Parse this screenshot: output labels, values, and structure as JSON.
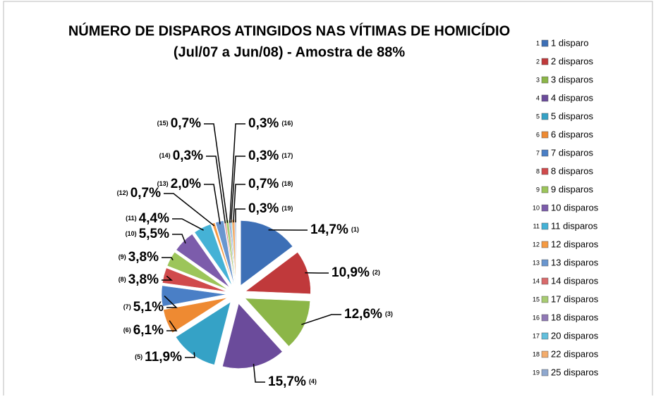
{
  "chart_data": {
    "type": "pie",
    "title": "NÚMERO DE DISPAROS ATINGIDOS NAS VÍTIMAS DE HOMICÍDIO",
    "subtitle": "(Jul/07 a Jun/08) -  Amostra de 88%",
    "categories": [
      "1 disparo",
      "2 disparos",
      "3 disparos",
      "4 disparos",
      "5 disparos",
      "6 disparos",
      "7 disparos",
      "8 disparos",
      "9 disparos",
      "10 disparos",
      "11 disparos",
      "12 disparos",
      "13 disparos",
      "14 disparos",
      "17 disparos",
      "18 disparos",
      "20 disparos",
      "22 disparos",
      "25 disparos"
    ],
    "legend_numbers": [
      "1",
      "2",
      "3",
      "4",
      "5",
      "6",
      "7",
      "8",
      "9",
      "10",
      "11",
      "12",
      "13",
      "14",
      "15",
      "16",
      "17",
      "18",
      "19"
    ],
    "slice_numbers": [
      "(1)",
      "(2)",
      "(3)",
      "(4)",
      "(5)",
      "(6)",
      "(7)",
      "(8)",
      "(9)",
      "(10)",
      "(11)",
      "(12)",
      "(13)",
      "(14)",
      "(15)",
      "(16)",
      "(17)",
      "(18)",
      "(19)"
    ],
    "values": [
      14.7,
      10.9,
      12.6,
      15.7,
      11.9,
      6.1,
      5.1,
      3.8,
      3.8,
      5.5,
      4.4,
      0.7,
      2.0,
      0.3,
      0.7,
      0.3,
      0.3,
      0.7,
      0.3
    ],
    "value_labels": [
      "14,7%",
      "10,9%",
      "12,6%",
      "15,7%",
      "11,9%",
      "6,1%",
      "5,1%",
      "3,8%",
      "3,8%",
      "5,5%",
      "4,4%",
      "0,7%",
      "2,0%",
      "0,3%",
      "0,7%",
      "0,3%",
      "0,3%",
      "0,7%",
      "0,3%"
    ],
    "colors": [
      "#3d6fb6",
      "#c0393b",
      "#8cb648",
      "#6b4b9b",
      "#35a2c6",
      "#ee8a32",
      "#4a7fc6",
      "#d04a4c",
      "#9cc55a",
      "#7c5cab",
      "#45b2d6",
      "#f59a42",
      "#6a96cf",
      "#d96a6b",
      "#a8cc72",
      "#9078b6",
      "#62bfdc",
      "#f3ac6c",
      "#8fa8cf"
    ],
    "legend": "right"
  }
}
